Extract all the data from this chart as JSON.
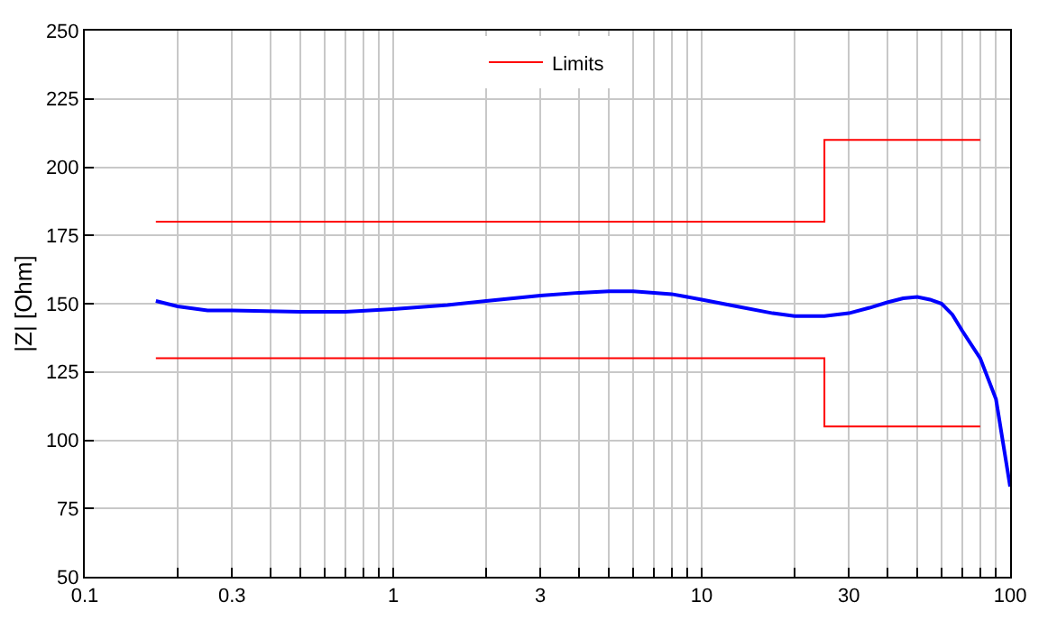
{
  "chart_data": {
    "type": "line",
    "ylabel": "|Z| [Ohm]",
    "log": "x",
    "grid": true,
    "legend": "top",
    "line_style": "solid",
    "marker": "none",
    "xlim": [
      0.1,
      100
    ],
    "ylim": [
      50,
      250
    ],
    "xticks": [
      0.1,
      {
        "value": 0.2,
        "label": null
      },
      0.3,
      {
        "value": 0.4,
        "label": null
      },
      {
        "value": 0.5,
        "label": null
      },
      {
        "value": 0.6,
        "label": null
      },
      {
        "value": 0.7,
        "label": null
      },
      {
        "value": 0.8,
        "label": null
      },
      {
        "value": 0.9,
        "label": null
      },
      1,
      {
        "value": 2,
        "label": null
      },
      3,
      {
        "value": 4,
        "label": null
      },
      {
        "value": 5,
        "label": null
      },
      {
        "value": 6,
        "label": null
      },
      {
        "value": 7,
        "label": null
      },
      {
        "value": 8,
        "label": null
      },
      {
        "value": 9,
        "label": null
      },
      10,
      {
        "value": 20,
        "label": null
      },
      30,
      {
        "value": 40,
        "label": null
      },
      {
        "value": 50,
        "label": null
      },
      {
        "value": 60,
        "label": null
      },
      {
        "value": 70,
        "label": null
      },
      {
        "value": 80,
        "label": null
      },
      {
        "value": 90,
        "label": null
      },
      100
    ],
    "yticks": [
      50,
      75,
      100,
      125,
      150,
      175,
      200,
      225,
      250
    ],
    "series": [
      {
        "color": "#0000ff",
        "x": [
          0.17,
          0.2,
          0.25,
          0.3,
          0.5,
          0.7,
          1,
          1.5,
          2,
          3,
          4,
          5,
          6,
          8,
          10,
          13,
          17,
          20,
          25,
          30,
          35,
          40,
          45,
          50,
          55,
          60,
          65,
          70,
          80,
          90,
          100
        ],
        "values": [
          151,
          149,
          147.5,
          147.5,
          147,
          147,
          148,
          149.5,
          151,
          153,
          154,
          154.5,
          154.5,
          153.5,
          151.5,
          149,
          146.5,
          145.5,
          145.5,
          146.5,
          148.5,
          150.5,
          152,
          152.5,
          151.5,
          150,
          146,
          140,
          130,
          115,
          83
        ]
      },
      {
        "name": "Limits",
        "type": "step",
        "color": "#ff0000",
        "x": [
          0.17,
          25,
          80
        ],
        "values": [
          180,
          210,
          210
        ]
      },
      {
        "type": "step",
        "color": "#ff0000",
        "x": [
          0.17,
          25,
          80
        ],
        "values": [
          130,
          105,
          105
        ]
      }
    ]
  }
}
